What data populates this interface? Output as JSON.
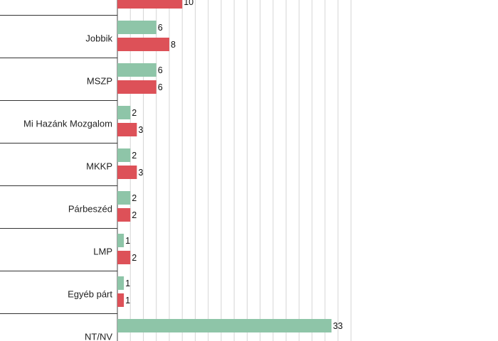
{
  "chart_data": {
    "type": "bar",
    "orientation": "horizontal",
    "categories": [
      "",
      "Jobbik",
      "MSZP",
      "Mi Hazánk Mozgalom",
      "MKKP",
      "Párbeszéd",
      "LMP",
      "Egyéb párt",
      "NT/NV"
    ],
    "series": [
      {
        "values": [
          null,
          6,
          6,
          2,
          2,
          2,
          1,
          1,
          33
        ],
        "color": "#8ec5a8"
      },
      {
        "values": [
          10,
          8,
          6,
          3,
          3,
          2,
          2,
          1,
          null
        ],
        "color": "#dd5158"
      }
    ],
    "xlim": [
      0,
      36
    ],
    "grid": true
  }
}
